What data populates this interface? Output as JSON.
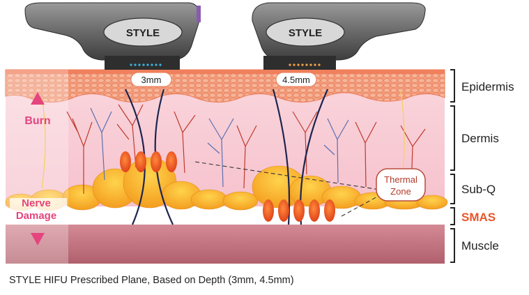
{
  "devices": [
    {
      "brand": "STYLE",
      "depth_label": "3mm"
    },
    {
      "brand": "STYLE",
      "depth_label": "4.5mm"
    }
  ],
  "annotations": {
    "burn": "Burn",
    "nerve_damage_line1": "Nerve",
    "nerve_damage_line2": "Damage",
    "thermal_zone_line1": "Thermal",
    "thermal_zone_line2": "Zone"
  },
  "layers": [
    {
      "label": "Epidermis"
    },
    {
      "label": "Dermis"
    },
    {
      "label": "Sub-Q"
    },
    {
      "label": "SMAS",
      "color": "#e8562a"
    },
    {
      "label": "Muscle"
    }
  ],
  "caption": "STYLE HIFU Prescribed Plane, Based on Depth (3mm, 4.5mm)",
  "colors": {
    "epidermis": "#f5a07a",
    "dermis": "#f8cfd8",
    "subq_fat": "#f7b32b",
    "smas": "#ffffff",
    "muscle": "#c2737f",
    "focal": "#ef5a22",
    "arrow": "#e5457e"
  }
}
